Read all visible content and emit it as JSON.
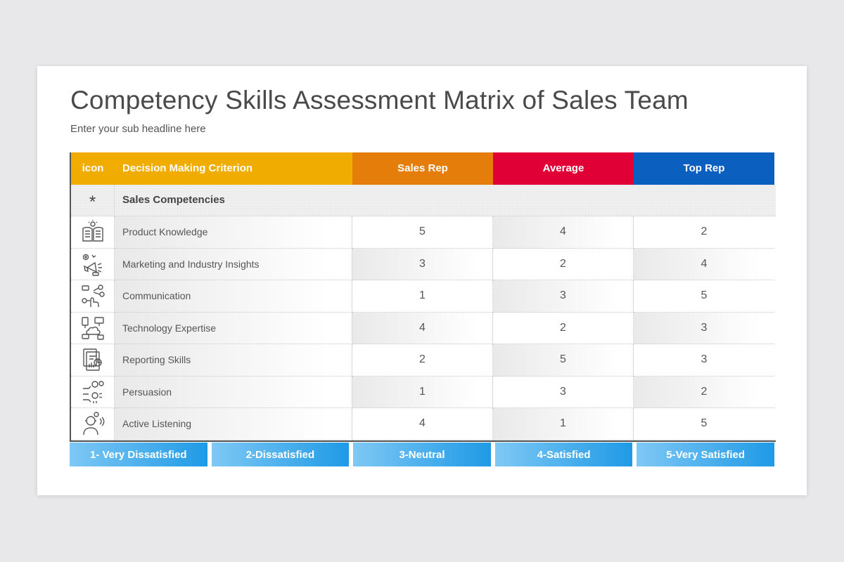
{
  "title": "Competency Skills Assessment Matrix of Sales Team",
  "subtitle": "Enter your sub headline here",
  "table": {
    "headers": {
      "icon": "icon",
      "criterion": "Decision Making Criterion",
      "sales_rep": "Sales Rep",
      "average": "Average",
      "top_rep": "Top Rep"
    },
    "category": {
      "marker": "*",
      "label": "Sales Competencies"
    },
    "rows": [
      {
        "icon": "book-lightbulb-icon",
        "label": "Product Knowledge",
        "sales_rep": "5",
        "average": "4",
        "top_rep": "2"
      },
      {
        "icon": "megaphone-gear-icon",
        "label": "Marketing and Industry Insights",
        "sales_rep": "3",
        "average": "2",
        "top_rep": "4"
      },
      {
        "icon": "hand-network-icon",
        "label": "Communication",
        "sales_rep": "1",
        "average": "3",
        "top_rep": "5"
      },
      {
        "icon": "devices-cloud-icon",
        "label": "Technology Expertise",
        "sales_rep": "4",
        "average": "2",
        "top_rep": "3"
      },
      {
        "icon": "report-chart-icon",
        "label": "Reporting Skills",
        "sales_rep": "2",
        "average": "5",
        "top_rep": "3"
      },
      {
        "icon": "person-ideas-icon",
        "label": "Persuasion",
        "sales_rep": "1",
        "average": "3",
        "top_rep": "2"
      },
      {
        "icon": "person-listening-icon",
        "label": "Active Listening",
        "sales_rep": "4",
        "average": "1",
        "top_rep": "5"
      }
    ]
  },
  "legend": [
    "1- Very Dissatisfied",
    "2-Dissatisfied",
    "3-Neutral",
    "4-Satisfied",
    "5-Very Satisfied"
  ],
  "colors": {
    "header_icon": "#f0ad00",
    "header_sales_rep": "#e57d0a",
    "header_average": "#e00035",
    "header_top_rep": "#0a5fbf",
    "legend": "#1f9ae6"
  }
}
